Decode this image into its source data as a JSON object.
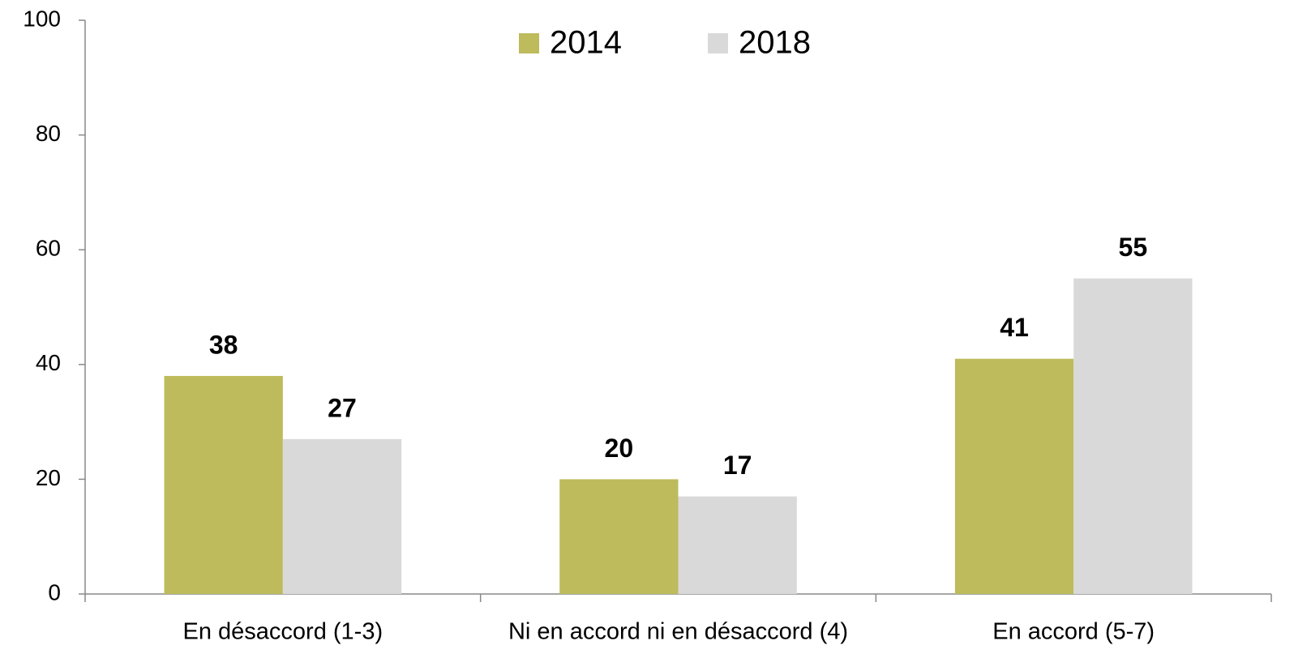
{
  "chart_data": {
    "type": "bar",
    "categories": [
      "En désaccord (1-3)",
      "Ni en accord ni en désaccord (4)",
      "En accord (5-7)"
    ],
    "series": [
      {
        "name": "2014",
        "color": "#bdbb5b",
        "values": [
          38,
          20,
          41
        ]
      },
      {
        "name": "2018",
        "color": "#d9d9d9",
        "values": [
          27,
          17,
          55
        ]
      }
    ],
    "ylim": [
      0,
      100
    ],
    "yticks": [
      0,
      20,
      40,
      60,
      80,
      100
    ],
    "grid": false,
    "legend": "top"
  }
}
